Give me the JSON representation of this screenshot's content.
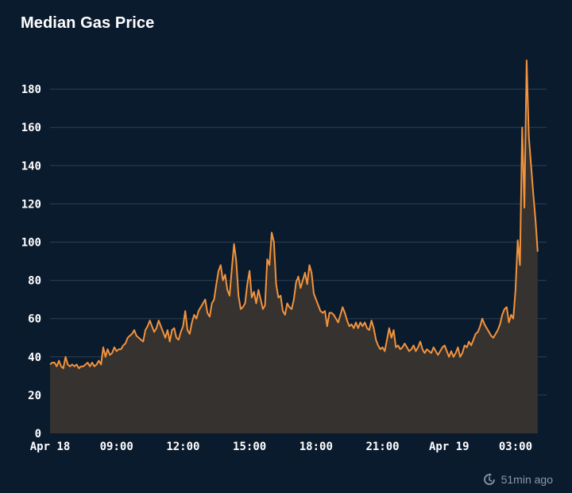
{
  "title": "Median Gas Price",
  "footer": {
    "updated_label": "51min ago",
    "icon": "refresh-clock-icon"
  },
  "colors": {
    "background": "#0b1b2e",
    "line": "#f2933c",
    "area": "#35322f",
    "grid": "#2a3f55",
    "axis_text": "#ffffff"
  },
  "chart_data": {
    "type": "area",
    "title": "Median Gas Price",
    "xlabel": "",
    "ylabel": "",
    "ylim": [
      0,
      200
    ],
    "yticks": [
      0,
      20,
      40,
      60,
      80,
      100,
      120,
      140,
      160,
      180
    ],
    "grid": true,
    "x_range_hours": [
      0,
      22.4
    ],
    "xticks": [
      {
        "hour": 0,
        "label": "Apr 18"
      },
      {
        "hour": 3,
        "label": "09:00"
      },
      {
        "hour": 6,
        "label": "12:00"
      },
      {
        "hour": 9,
        "label": "15:00"
      },
      {
        "hour": 12,
        "label": "18:00"
      },
      {
        "hour": 15,
        "label": "21:00"
      },
      {
        "hour": 18,
        "label": "Apr 19"
      },
      {
        "hour": 21,
        "label": "03:00"
      }
    ],
    "series": [
      {
        "name": "Median Gas Price",
        "points": [
          [
            0.0,
            36
          ],
          [
            0.1,
            37
          ],
          [
            0.2,
            37
          ],
          [
            0.3,
            35
          ],
          [
            0.4,
            38
          ],
          [
            0.5,
            35
          ],
          [
            0.6,
            34
          ],
          [
            0.7,
            40
          ],
          [
            0.8,
            36
          ],
          [
            0.9,
            35
          ],
          [
            1.0,
            36
          ],
          [
            1.1,
            35
          ],
          [
            1.2,
            36
          ],
          [
            1.3,
            34
          ],
          [
            1.4,
            35
          ],
          [
            1.5,
            35
          ],
          [
            1.6,
            36
          ],
          [
            1.7,
            37
          ],
          [
            1.8,
            35
          ],
          [
            1.9,
            37
          ],
          [
            2.0,
            35
          ],
          [
            2.1,
            36
          ],
          [
            2.2,
            38
          ],
          [
            2.3,
            36
          ],
          [
            2.4,
            45
          ],
          [
            2.5,
            40
          ],
          [
            2.6,
            44
          ],
          [
            2.7,
            41
          ],
          [
            2.8,
            42
          ],
          [
            2.9,
            45
          ],
          [
            3.0,
            43
          ],
          [
            3.1,
            44
          ],
          [
            3.2,
            44
          ],
          [
            3.3,
            46
          ],
          [
            3.4,
            47
          ],
          [
            3.5,
            50
          ],
          [
            3.6,
            51
          ],
          [
            3.7,
            52
          ],
          [
            3.8,
            54
          ],
          [
            3.9,
            51
          ],
          [
            4.0,
            50
          ],
          [
            4.1,
            49
          ],
          [
            4.2,
            48
          ],
          [
            4.3,
            54
          ],
          [
            4.4,
            56
          ],
          [
            4.5,
            59
          ],
          [
            4.6,
            56
          ],
          [
            4.7,
            53
          ],
          [
            4.8,
            55
          ],
          [
            4.9,
            59
          ],
          [
            5.0,
            56
          ],
          [
            5.1,
            53
          ],
          [
            5.2,
            50
          ],
          [
            5.3,
            54
          ],
          [
            5.4,
            48
          ],
          [
            5.5,
            54
          ],
          [
            5.6,
            55
          ],
          [
            5.7,
            50
          ],
          [
            5.8,
            49
          ],
          [
            5.9,
            53
          ],
          [
            6.0,
            56
          ],
          [
            6.1,
            64
          ],
          [
            6.2,
            54
          ],
          [
            6.3,
            52
          ],
          [
            6.4,
            58
          ],
          [
            6.5,
            62
          ],
          [
            6.6,
            60
          ],
          [
            6.7,
            64
          ],
          [
            6.8,
            66
          ],
          [
            6.9,
            68
          ],
          [
            7.0,
            70
          ],
          [
            7.1,
            63
          ],
          [
            7.2,
            61
          ],
          [
            7.3,
            68
          ],
          [
            7.4,
            70
          ],
          [
            7.5,
            78
          ],
          [
            7.6,
            85
          ],
          [
            7.7,
            88
          ],
          [
            7.8,
            80
          ],
          [
            7.9,
            83
          ],
          [
            8.0,
            75
          ],
          [
            8.1,
            72
          ],
          [
            8.2,
            86
          ],
          [
            8.3,
            99
          ],
          [
            8.4,
            90
          ],
          [
            8.5,
            72
          ],
          [
            8.6,
            65
          ],
          [
            8.7,
            66
          ],
          [
            8.8,
            68
          ],
          [
            8.9,
            78
          ],
          [
            9.0,
            85
          ],
          [
            9.1,
            71
          ],
          [
            9.2,
            74
          ],
          [
            9.3,
            68
          ],
          [
            9.4,
            75
          ],
          [
            9.5,
            70
          ],
          [
            9.6,
            65
          ],
          [
            9.7,
            67
          ],
          [
            9.8,
            91
          ],
          [
            9.9,
            88
          ],
          [
            10.0,
            105
          ],
          [
            10.1,
            100
          ],
          [
            10.2,
            78
          ],
          [
            10.3,
            71
          ],
          [
            10.4,
            72
          ],
          [
            10.5,
            64
          ],
          [
            10.6,
            62
          ],
          [
            10.7,
            68
          ],
          [
            10.8,
            66
          ],
          [
            10.9,
            65
          ],
          [
            11.0,
            70
          ],
          [
            11.1,
            79
          ],
          [
            11.2,
            82
          ],
          [
            11.3,
            76
          ],
          [
            11.4,
            80
          ],
          [
            11.5,
            84
          ],
          [
            11.6,
            78
          ],
          [
            11.7,
            88
          ],
          [
            11.8,
            84
          ],
          [
            11.9,
            73
          ],
          [
            12.0,
            70
          ],
          [
            12.1,
            67
          ],
          [
            12.2,
            64
          ],
          [
            12.3,
            63
          ],
          [
            12.4,
            64
          ],
          [
            12.5,
            56
          ],
          [
            12.6,
            63
          ],
          [
            12.7,
            63
          ],
          [
            12.8,
            62
          ],
          [
            12.9,
            60
          ],
          [
            13.0,
            58
          ],
          [
            13.1,
            62
          ],
          [
            13.2,
            66
          ],
          [
            13.3,
            63
          ],
          [
            13.4,
            59
          ],
          [
            13.5,
            56
          ],
          [
            13.6,
            57
          ],
          [
            13.7,
            55
          ],
          [
            13.8,
            58
          ],
          [
            13.9,
            55
          ],
          [
            14.0,
            58
          ],
          [
            14.1,
            56
          ],
          [
            14.2,
            58
          ],
          [
            14.3,
            55
          ],
          [
            14.4,
            54
          ],
          [
            14.5,
            59
          ],
          [
            14.6,
            55
          ],
          [
            14.7,
            49
          ],
          [
            14.8,
            46
          ],
          [
            14.9,
            44
          ],
          [
            15.0,
            45
          ],
          [
            15.1,
            43
          ],
          [
            15.2,
            49
          ],
          [
            15.3,
            55
          ],
          [
            15.4,
            50
          ],
          [
            15.5,
            54
          ],
          [
            15.6,
            45
          ],
          [
            15.7,
            46
          ],
          [
            15.8,
            44
          ],
          [
            15.9,
            45
          ],
          [
            16.0,
            47
          ],
          [
            16.1,
            45
          ],
          [
            16.2,
            43
          ],
          [
            16.3,
            44
          ],
          [
            16.4,
            46
          ],
          [
            16.5,
            43
          ],
          [
            16.6,
            45
          ],
          [
            16.7,
            48
          ],
          [
            16.8,
            44
          ],
          [
            16.9,
            42
          ],
          [
            17.0,
            44
          ],
          [
            17.1,
            43
          ],
          [
            17.2,
            42
          ],
          [
            17.3,
            45
          ],
          [
            17.4,
            43
          ],
          [
            17.5,
            41
          ],
          [
            17.6,
            43
          ],
          [
            17.7,
            45
          ],
          [
            17.8,
            46
          ],
          [
            17.9,
            43
          ],
          [
            18.0,
            40
          ],
          [
            18.1,
            43
          ],
          [
            18.2,
            40
          ],
          [
            18.3,
            42
          ],
          [
            18.4,
            45
          ],
          [
            18.5,
            40
          ],
          [
            18.6,
            42
          ],
          [
            18.7,
            46
          ],
          [
            18.8,
            45
          ],
          [
            18.9,
            48
          ],
          [
            19.0,
            46
          ],
          [
            19.1,
            49
          ],
          [
            19.2,
            52
          ],
          [
            19.3,
            53
          ],
          [
            19.4,
            56
          ],
          [
            19.5,
            60
          ],
          [
            19.6,
            57
          ],
          [
            19.7,
            55
          ],
          [
            19.8,
            53
          ],
          [
            19.9,
            51
          ],
          [
            20.0,
            50
          ],
          [
            20.1,
            52
          ],
          [
            20.2,
            54
          ],
          [
            20.3,
            57
          ],
          [
            20.4,
            62
          ],
          [
            20.5,
            65
          ],
          [
            20.6,
            66
          ],
          [
            20.7,
            58
          ],
          [
            20.8,
            62
          ],
          [
            20.9,
            60
          ],
          [
            21.0,
            75
          ],
          [
            21.1,
            101
          ],
          [
            21.2,
            88
          ],
          [
            21.3,
            160
          ],
          [
            21.4,
            118
          ],
          [
            21.5,
            195
          ],
          [
            21.6,
            155
          ],
          [
            21.7,
            140
          ],
          [
            21.8,
            125
          ],
          [
            21.9,
            112
          ],
          [
            22.0,
            95
          ]
        ]
      }
    ]
  }
}
